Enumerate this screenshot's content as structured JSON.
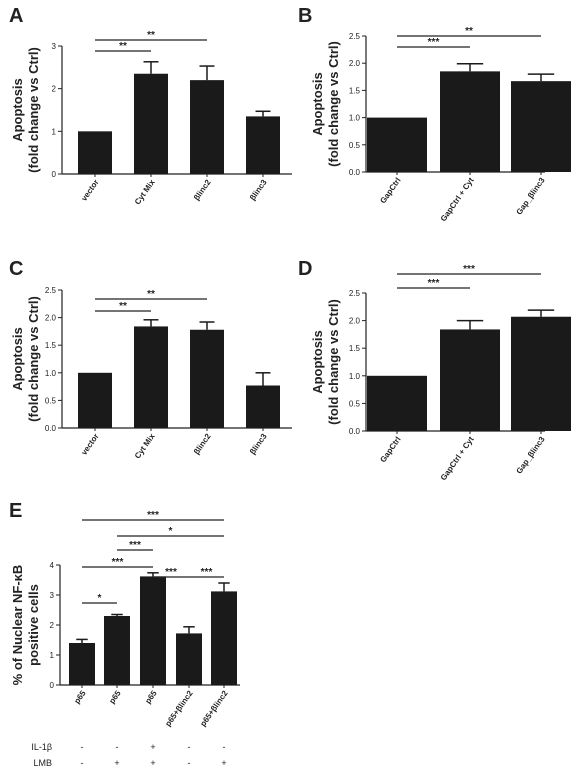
{
  "chart_data": [
    {
      "panel": "A",
      "type": "bar",
      "categories": [
        "vector",
        "Cyt Mix",
        "βlinc2",
        "βlinc3"
      ],
      "values": [
        1.0,
        2.35,
        2.2,
        1.35
      ],
      "errors": [
        0.0,
        0.28,
        0.33,
        0.12
      ],
      "ylabel": [
        "Apoptosis",
        "(fold change vs Ctrl)"
      ],
      "ylim": [
        0,
        3
      ],
      "yticks": [
        "0",
        "1",
        "2",
        "3"
      ],
      "significance": [
        {
          "from": 0,
          "to": 1,
          "label": "**"
        },
        {
          "from": 0,
          "to": 2,
          "label": "**"
        }
      ]
    },
    {
      "panel": "B",
      "type": "bar",
      "categories": [
        "GapCtrl",
        "GapCtrl + Cyt",
        "Gap_βlinc3"
      ],
      "values": [
        1.0,
        1.85,
        1.67
      ],
      "errors": [
        0.0,
        0.14,
        0.13
      ],
      "ylabel": [
        "Apoptosis",
        "(fold change vs Ctrl)"
      ],
      "ylim": [
        0,
        2.5
      ],
      "yticks": [
        "0.0",
        "0.5",
        "1.0",
        "1.5",
        "2.0",
        "2.5"
      ],
      "significance": [
        {
          "from": 0,
          "to": 1,
          "label": "***"
        },
        {
          "from": 0,
          "to": 2,
          "label": "**"
        }
      ]
    },
    {
      "panel": "C",
      "type": "bar",
      "categories": [
        "vector",
        "Cyt Mix",
        "βlinc2",
        "βlinc3"
      ],
      "values": [
        1.0,
        1.84,
        1.78,
        0.77
      ],
      "errors": [
        0.0,
        0.12,
        0.14,
        0.23
      ],
      "ylabel": [
        "Apoptosis",
        "(fold change vs Ctrl)"
      ],
      "ylim": [
        0,
        2.5
      ],
      "yticks": [
        "0.0",
        "0.5",
        "1.0",
        "1.5",
        "2.0",
        "2.5"
      ],
      "significance": [
        {
          "from": 0,
          "to": 1,
          "label": "**"
        },
        {
          "from": 0,
          "to": 2,
          "label": "**"
        }
      ]
    },
    {
      "panel": "D",
      "type": "bar",
      "categories": [
        "GapCtrl",
        "GapCtrl + Cyt",
        "Gap_βlinc3"
      ],
      "values": [
        1.0,
        1.84,
        2.07
      ],
      "errors": [
        0.0,
        0.16,
        0.12
      ],
      "ylabel": [
        "Apoptosis",
        "(fold change vs Ctrl)"
      ],
      "ylim": [
        0,
        2.5
      ],
      "yticks": [
        "0.0",
        "0.5",
        "1.0",
        "1.5",
        "2.0",
        "2.5"
      ],
      "significance": [
        {
          "from": 0,
          "to": 1,
          "label": "***"
        },
        {
          "from": 0,
          "to": 2,
          "label": "***"
        }
      ]
    },
    {
      "panel": "E",
      "type": "bar",
      "categories": [
        "p65",
        "p65",
        "p65",
        "p65+βlinc2",
        "p65+βlinc2"
      ],
      "values": [
        1.4,
        2.3,
        3.62,
        1.72,
        3.12
      ],
      "errors": [
        0.12,
        0.05,
        0.12,
        0.22,
        0.28
      ],
      "ylabel": [
        "% of Nuclear NF-κB",
        "positive cells"
      ],
      "ylim": [
        0,
        4
      ],
      "yticks": [
        "0",
        "1",
        "2",
        "3",
        "4"
      ],
      "conditions": [
        {
          "name": "IL-1β",
          "values": [
            "-",
            "-",
            "+",
            "-",
            "-"
          ]
        },
        {
          "name": "LMB",
          "values": [
            "-",
            "+",
            "+",
            "-",
            "+"
          ]
        }
      ],
      "significance": [
        {
          "from": 0,
          "to": 1,
          "label": "*"
        },
        {
          "from": 0,
          "to": 2,
          "label": "***"
        },
        {
          "from": 2,
          "to": 3,
          "label": "***"
        },
        {
          "from": 3,
          "to": 4,
          "label": "***"
        },
        {
          "from": 1,
          "to": 2,
          "label": "***"
        },
        {
          "from": 1,
          "to": 4,
          "label": "*"
        },
        {
          "from": 0,
          "to": 4,
          "label": "***"
        }
      ]
    }
  ]
}
